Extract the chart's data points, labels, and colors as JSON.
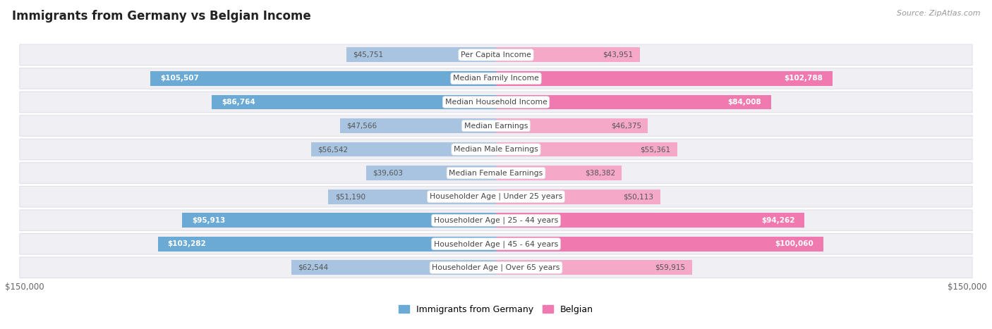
{
  "title": "Immigrants from Germany vs Belgian Income",
  "source": "Source: ZipAtlas.com",
  "categories": [
    "Per Capita Income",
    "Median Family Income",
    "Median Household Income",
    "Median Earnings",
    "Median Male Earnings",
    "Median Female Earnings",
    "Householder Age | Under 25 years",
    "Householder Age | 25 - 44 years",
    "Householder Age | 45 - 64 years",
    "Householder Age | Over 65 years"
  ],
  "germany_values": [
    45751,
    105507,
    86764,
    47566,
    56542,
    39603,
    51190,
    95913,
    103282,
    62544
  ],
  "belgian_values": [
    43951,
    102788,
    84008,
    46375,
    55361,
    38382,
    50113,
    94262,
    100060,
    59915
  ],
  "germany_labels": [
    "$45,751",
    "$105,507",
    "$86,764",
    "$47,566",
    "$56,542",
    "$39,603",
    "$51,190",
    "$95,913",
    "$103,282",
    "$62,544"
  ],
  "belgian_labels": [
    "$43,951",
    "$102,788",
    "$84,008",
    "$46,375",
    "$55,361",
    "$38,382",
    "$50,113",
    "$94,262",
    "$100,060",
    "$59,915"
  ],
  "germany_color_light": "#a8c4e0",
  "germany_color_dark": "#6aaad4",
  "belgian_color_light": "#f5a8c8",
  "belgian_color_dark": "#f07ab0",
  "xlim": 150000,
  "bar_height": 0.62,
  "background_color": "#ffffff",
  "pill_color": "#f0f0f4",
  "pill_border_color": "#e0e0e8",
  "legend_germany": "Immigrants from Germany",
  "legend_belgian": "Belgian",
  "x_label_left": "$150,000",
  "x_label_right": "$150,000",
  "dark_threshold": 80000
}
